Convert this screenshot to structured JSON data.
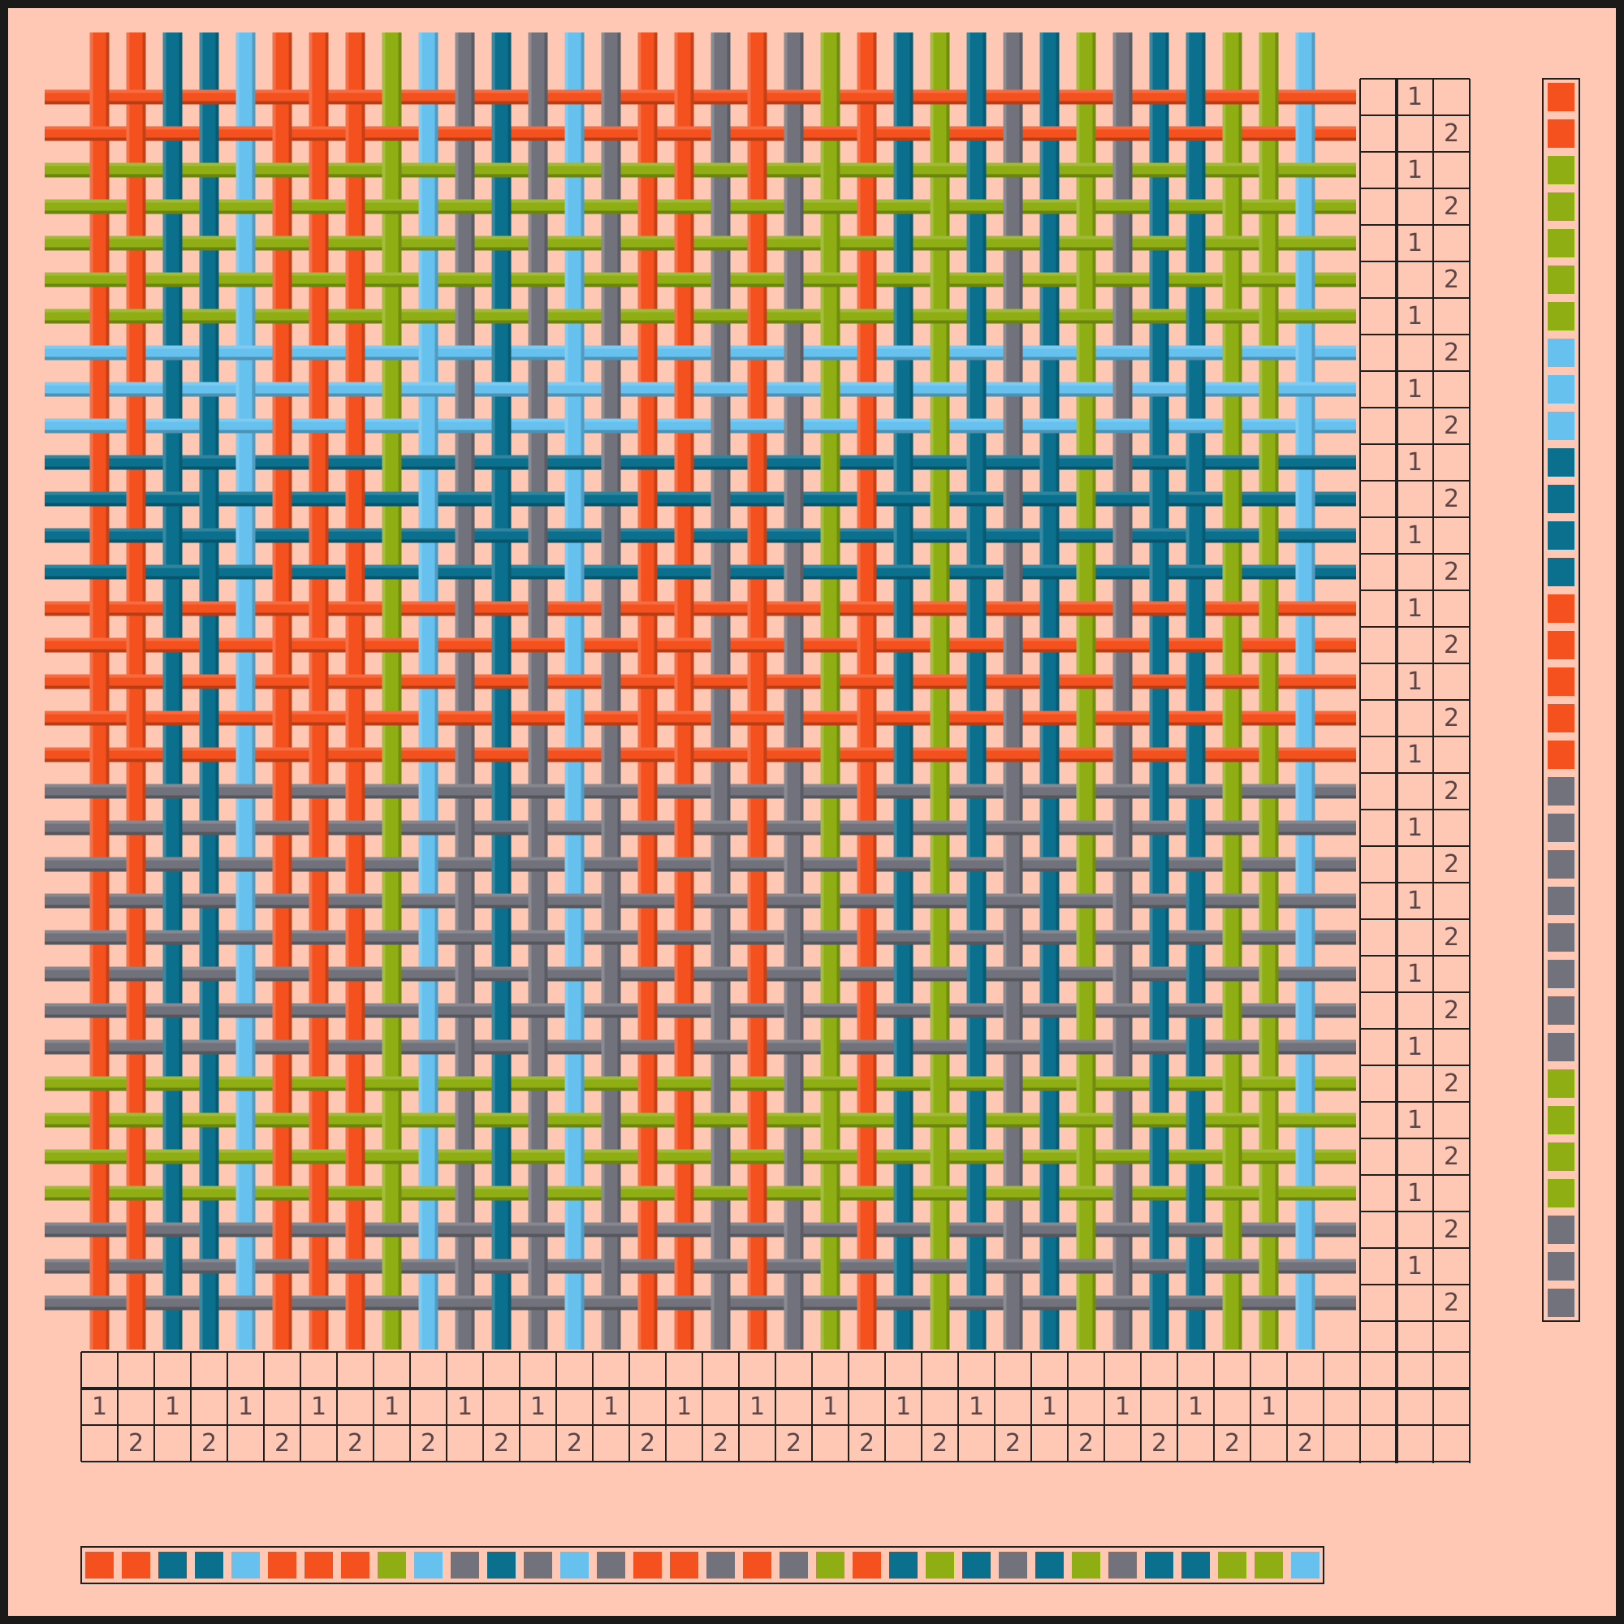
{
  "palette": {
    "O": "#f4511e",
    "G": "#8fae14",
    "T": "#0b708d",
    "B": "#67c1ef",
    "Y": "#72727c"
  },
  "colors": {
    "background": "#ffc8b4",
    "frame": "#1a1a1a",
    "grid_line": "#1f1f1f",
    "number_text": "#5a4548"
  },
  "warp_colors": [
    "O",
    "O",
    "T",
    "T",
    "B",
    "O",
    "O",
    "O",
    "G",
    "B",
    "Y",
    "T",
    "Y",
    "B",
    "Y",
    "O",
    "O",
    "Y",
    "O",
    "Y",
    "G",
    "O",
    "T",
    "G",
    "T",
    "Y",
    "T",
    "G",
    "Y",
    "T",
    "T",
    "G",
    "G",
    "B"
  ],
  "weft_colors": [
    "O",
    "O",
    "G",
    "G",
    "G",
    "G",
    "G",
    "B",
    "B",
    "B",
    "T",
    "T",
    "T",
    "T",
    "O",
    "O",
    "O",
    "O",
    "O",
    "Y",
    "Y",
    "Y",
    "Y",
    "Y",
    "Y",
    "Y",
    "Y",
    "G",
    "G",
    "G",
    "G",
    "Y",
    "Y",
    "Y"
  ],
  "threading": {
    "shaft_labels": [
      "1",
      "2"
    ],
    "warp_numbers": [
      "1",
      "2",
      "1",
      "2",
      "1",
      "2",
      "1",
      "2",
      "1",
      "2",
      "1",
      "2",
      "1",
      "2",
      "1",
      "2",
      "1",
      "2",
      "1",
      "2",
      "1",
      "2",
      "1",
      "2",
      "1",
      "2",
      "1",
      "2",
      "1",
      "2",
      "1",
      "2",
      "1",
      "2"
    ]
  },
  "treadling": {
    "weft_numbers": [
      "1",
      "2",
      "1",
      "2",
      "1",
      "2",
      "1",
      "2",
      "1",
      "2",
      "1",
      "2",
      "1",
      "2",
      "1",
      "2",
      "1",
      "2",
      "1",
      "2",
      "1",
      "2",
      "1",
      "2",
      "1",
      "2",
      "1",
      "2",
      "1",
      "2",
      "1",
      "2",
      "1",
      "2"
    ]
  }
}
